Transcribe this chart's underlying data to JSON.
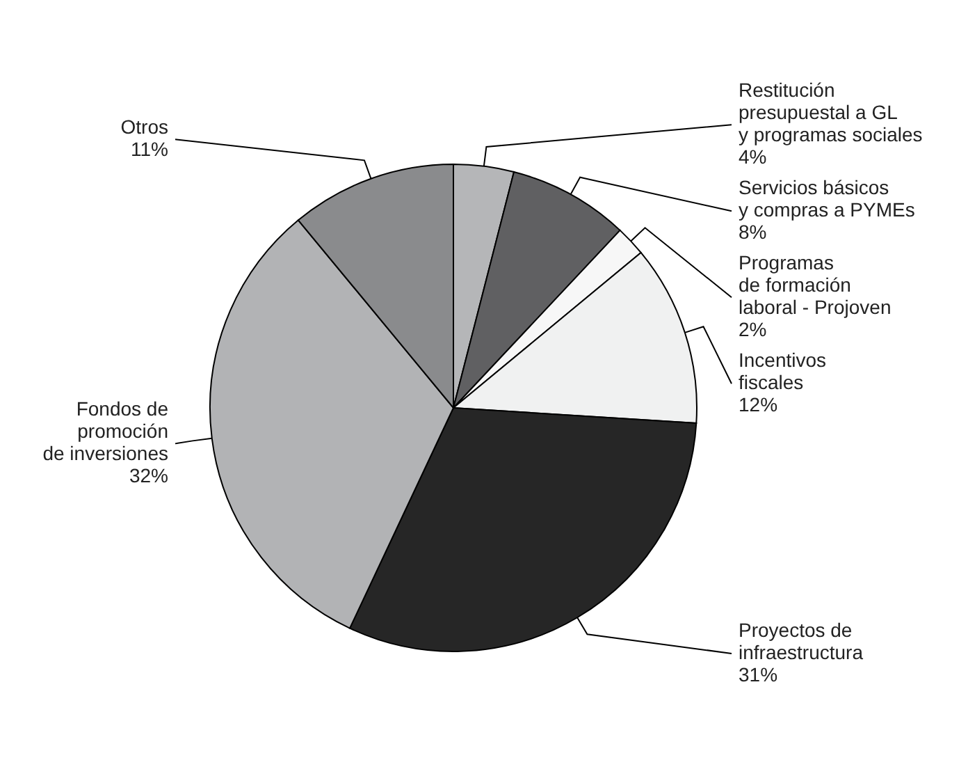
{
  "chart_data": {
    "type": "pie",
    "categories": [
      "Restitución\npresupuestal a GL\ny programas sociales",
      "Servicios básicos\ny compras a PYMEs",
      "Programas\nde formación\nlaboral - Projoven",
      "Incentivos\nfiscales",
      "Proyectos de\ninfraestructura",
      "Fondos de\npromoción\nde inversiones",
      "Otros"
    ],
    "values": [
      4,
      8,
      2,
      12,
      31,
      32,
      11
    ],
    "value_labels": [
      "4%",
      "8%",
      "2%",
      "12%",
      "31%",
      "32%",
      "11%"
    ],
    "colors": [
      "#b5b6b8",
      "#606062",
      "#f7f7f7",
      "#f0f1f1",
      "#262626",
      "#b2b3b5",
      "#8a8b8d"
    ]
  }
}
